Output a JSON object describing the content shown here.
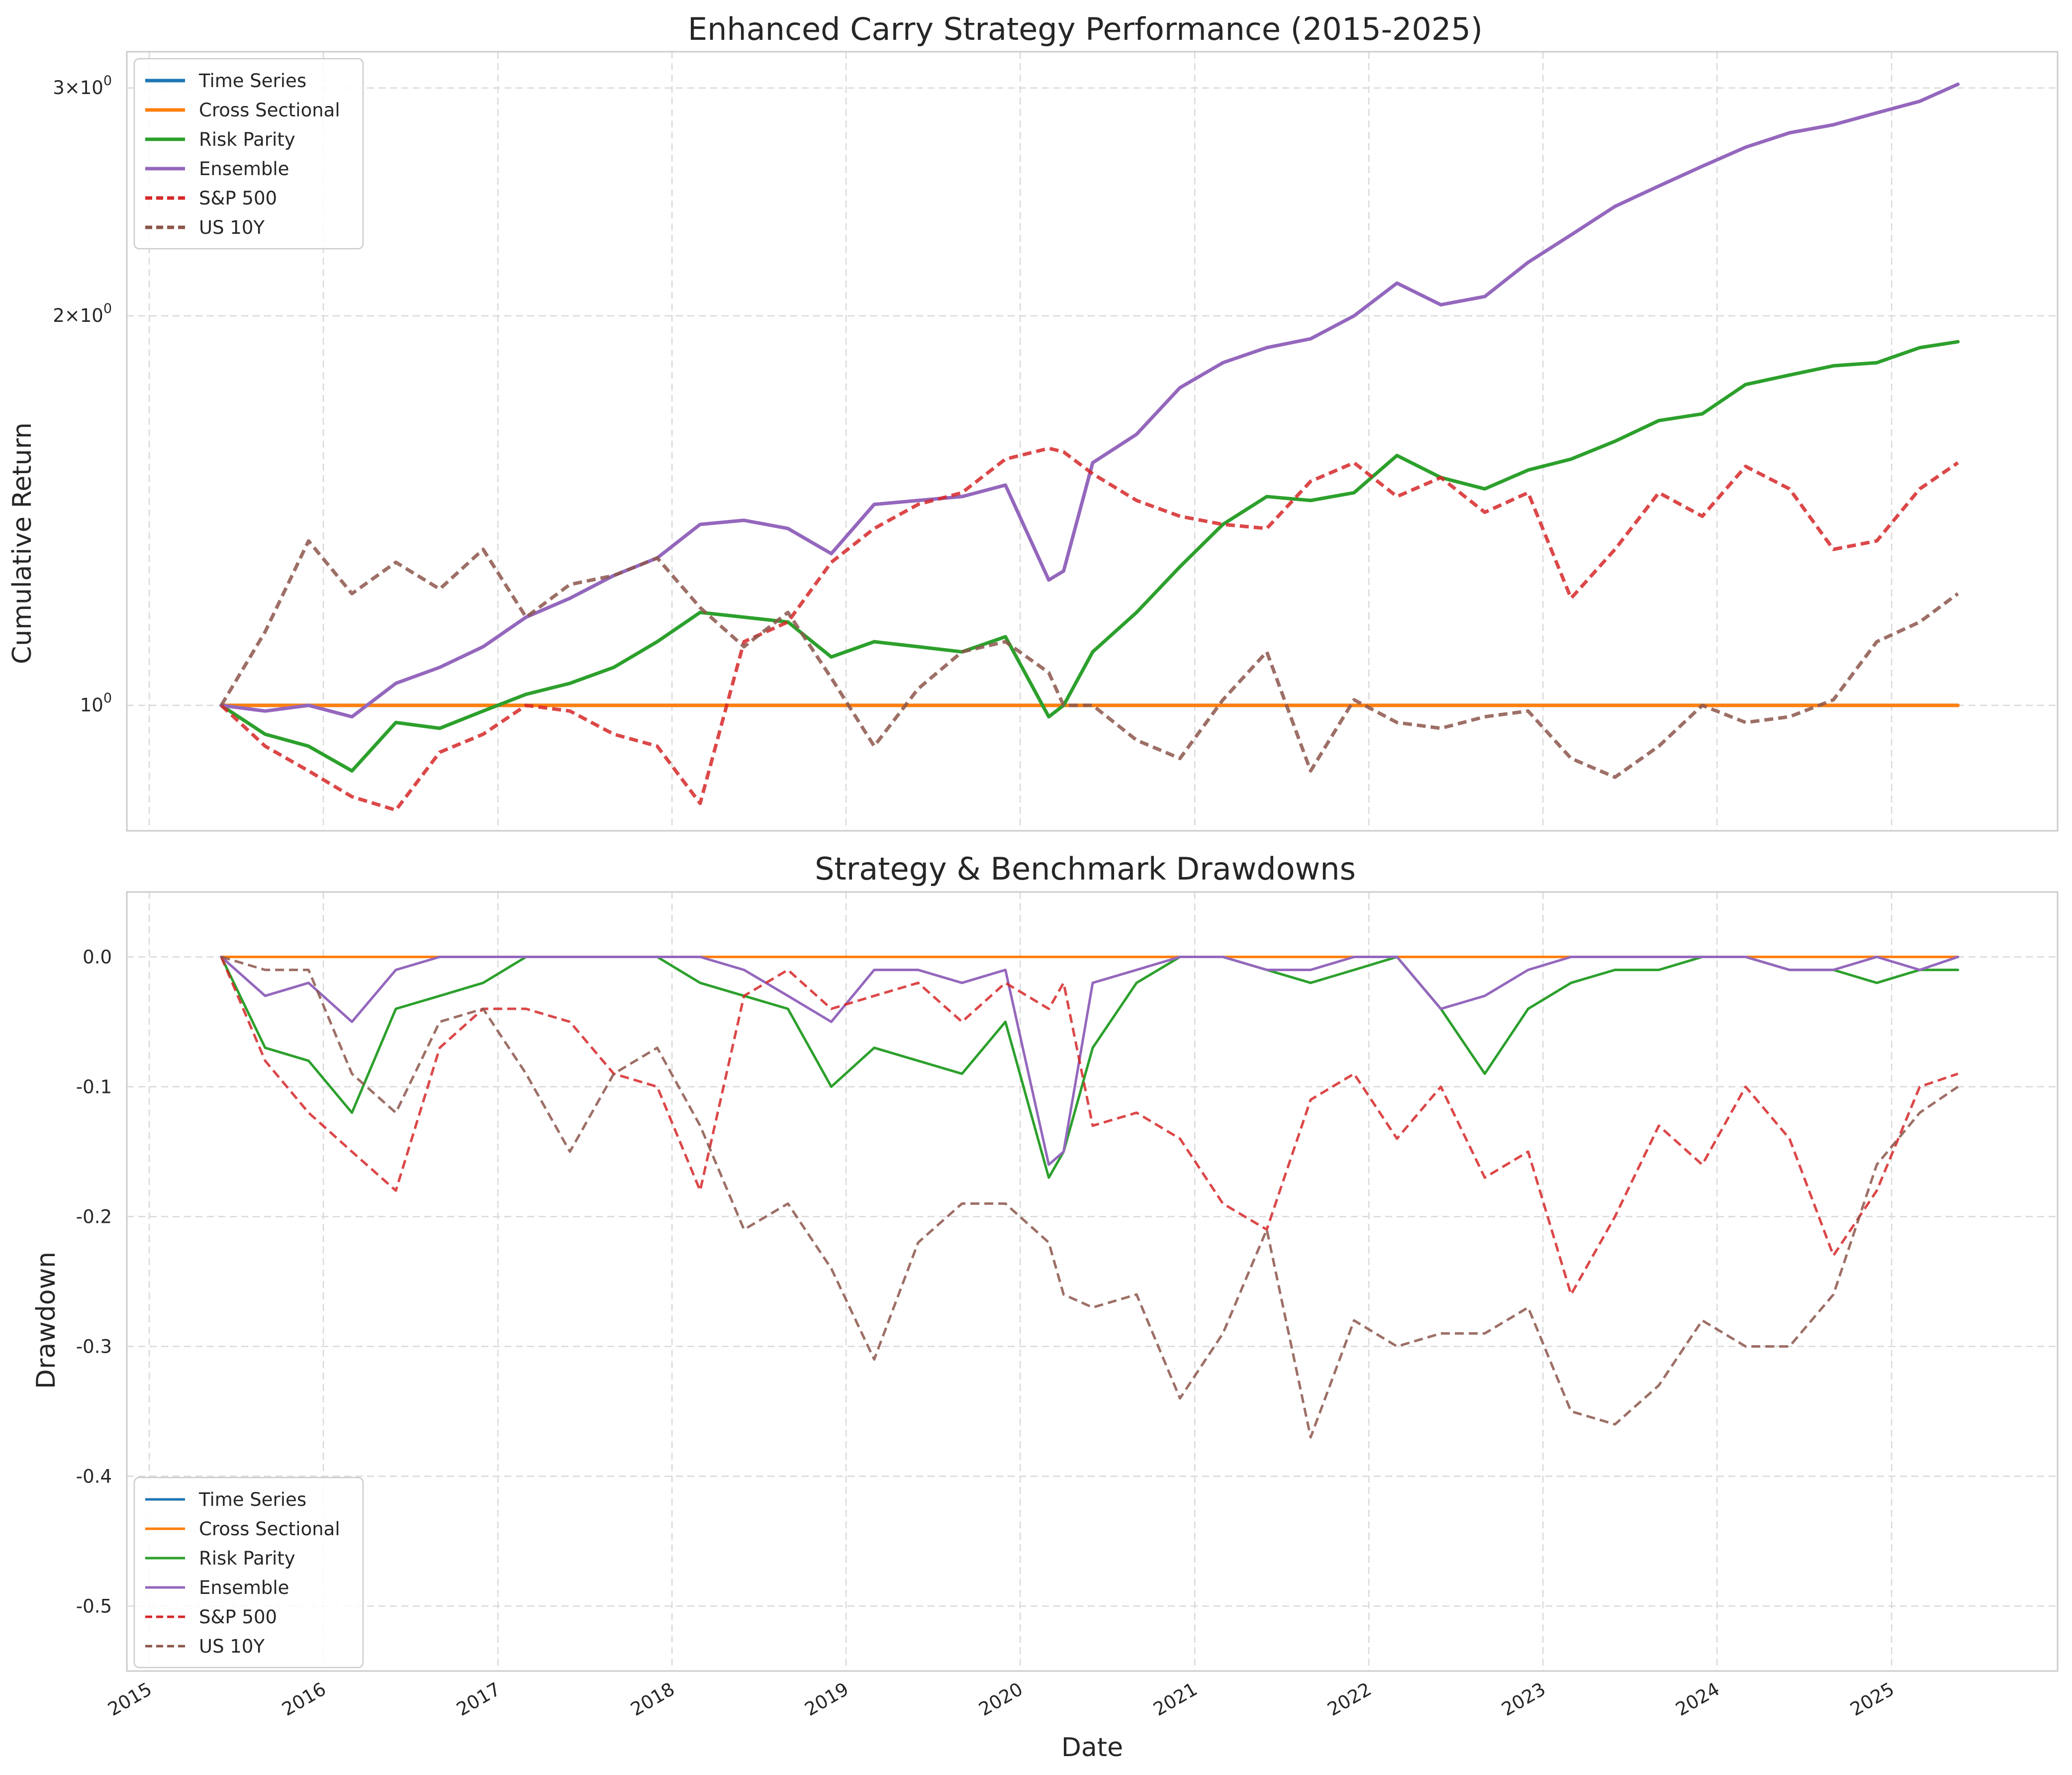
{
  "colors": {
    "time_series": "#1f77b4",
    "cross_sectional": "#ff7f0e",
    "risk_parity": "#2ca02c",
    "ensemble": "#9467bd",
    "sp500": "#d62728",
    "us10y": "#8c564b",
    "grid": "#d9d9d9",
    "spine": "#cccccc"
  },
  "top": {
    "title": "Enhanced Carry Strategy Performance (2015-2025)",
    "ylabel": "Cumulative Return",
    "ytick_labels": [
      {
        "value": 1,
        "base": "10",
        "exp": "0"
      },
      {
        "value": 2,
        "base": "2×10",
        "exp": "0"
      },
      {
        "value": 3,
        "base": "3×10",
        "exp": "0"
      }
    ]
  },
  "bottom": {
    "title": "Strategy & Benchmark Drawdowns",
    "ylabel": "Drawdown",
    "xlabel": "Date",
    "ytick_labels": [
      "0.0",
      "-0.1",
      "-0.2",
      "-0.3",
      "-0.4",
      "-0.5"
    ]
  },
  "x_tick_labels": [
    "2015",
    "2016",
    "2017",
    "2018",
    "2019",
    "2020",
    "2021",
    "2022",
    "2023",
    "2024",
    "2025"
  ],
  "legend": [
    {
      "label": "Time Series",
      "key": "time_series",
      "dash": false
    },
    {
      "label": "Cross Sectional",
      "key": "cross_sectional",
      "dash": false
    },
    {
      "label": "Risk Parity",
      "key": "risk_parity",
      "dash": false
    },
    {
      "label": "Ensemble",
      "key": "ensemble",
      "dash": false
    },
    {
      "label": "S&P 500",
      "key": "sp500",
      "dash": true
    },
    {
      "label": "US 10Y",
      "key": "us10y",
      "dash": true
    }
  ],
  "chart_data": [
    {
      "type": "line",
      "title": "Enhanced Carry Strategy Performance (2015-2025)",
      "xlabel": "",
      "ylabel": "Cumulative Return",
      "yscale": "log",
      "xlim": [
        "2014-11-15",
        "2025-12-15"
      ],
      "ylim": [
        0.8,
        3.2
      ],
      "grid": true,
      "legend_position": "upper left",
      "x": [
        "2015-06-01",
        "2015-09-01",
        "2015-12-01",
        "2016-03-01",
        "2016-06-01",
        "2016-09-01",
        "2016-12-01",
        "2017-03-01",
        "2017-06-01",
        "2017-09-01",
        "2017-12-01",
        "2018-03-01",
        "2018-06-01",
        "2018-09-01",
        "2018-12-01",
        "2019-03-01",
        "2019-06-01",
        "2019-09-01",
        "2019-12-01",
        "2020-03-01",
        "2020-04-01",
        "2020-06-01",
        "2020-09-01",
        "2020-12-01",
        "2021-03-01",
        "2021-06-01",
        "2021-09-01",
        "2021-12-01",
        "2022-03-01",
        "2022-06-01",
        "2022-09-01",
        "2022-12-01",
        "2023-03-01",
        "2023-06-01",
        "2023-09-01",
        "2023-12-01",
        "2024-03-01",
        "2024-06-01",
        "2024-09-01",
        "2024-12-01",
        "2025-03-01",
        "2025-05-20"
      ],
      "series": [
        {
          "name": "Time Series",
          "values": [
            1.0,
            1.0,
            1.0,
            1.0,
            1.0,
            1.0,
            1.0,
            1.0,
            1.0,
            1.0,
            1.0,
            1.0,
            1.0,
            1.0,
            1.0,
            1.0,
            1.0,
            1.0,
            1.0,
            1.0,
            1.0,
            1.0,
            1.0,
            1.0,
            1.0,
            1.0,
            1.0,
            1.0,
            1.0,
            1.0,
            1.0,
            1.0,
            1.0,
            1.0,
            1.0,
            1.0,
            1.0,
            1.0,
            1.0,
            1.0,
            1.0,
            1.0
          ]
        },
        {
          "name": "Cross Sectional",
          "values": [
            1.0,
            1.0,
            1.0,
            1.0,
            1.0,
            1.0,
            1.0,
            1.0,
            1.0,
            1.0,
            1.0,
            1.0,
            1.0,
            1.0,
            1.0,
            1.0,
            1.0,
            1.0,
            1.0,
            1.0,
            1.0,
            1.0,
            1.0,
            1.0,
            1.0,
            1.0,
            1.0,
            1.0,
            1.0,
            1.0,
            1.0,
            1.0,
            1.0,
            1.0,
            1.0,
            1.0,
            1.0,
            1.0,
            1.0,
            1.0,
            1.0,
            1.0
          ]
        },
        {
          "name": "Risk Parity",
          "values": [
            1.0,
            0.95,
            0.93,
            0.89,
            0.97,
            0.96,
            0.99,
            1.02,
            1.04,
            1.07,
            1.12,
            1.18,
            1.17,
            1.16,
            1.09,
            1.12,
            1.11,
            1.1,
            1.13,
            0.98,
            1.0,
            1.1,
            1.18,
            1.28,
            1.38,
            1.45,
            1.44,
            1.46,
            1.56,
            1.5,
            1.47,
            1.52,
            1.55,
            1.6,
            1.66,
            1.68,
            1.77,
            1.8,
            1.83,
            1.84,
            1.89,
            1.91
          ]
        },
        {
          "name": "Ensemble",
          "values": [
            1.0,
            0.99,
            1.0,
            0.98,
            1.04,
            1.07,
            1.11,
            1.17,
            1.21,
            1.26,
            1.3,
            1.38,
            1.39,
            1.37,
            1.31,
            1.43,
            1.44,
            1.45,
            1.48,
            1.25,
            1.27,
            1.54,
            1.62,
            1.76,
            1.84,
            1.89,
            1.92,
            2.0,
            2.12,
            2.04,
            2.07,
            2.2,
            2.31,
            2.43,
            2.52,
            2.61,
            2.7,
            2.77,
            2.81,
            2.87,
            2.93,
            3.02
          ]
        },
        {
          "name": "S&P 500",
          "values": [
            1.0,
            0.93,
            0.89,
            0.85,
            0.83,
            0.92,
            0.95,
            1.0,
            0.99,
            0.95,
            0.93,
            0.84,
            1.12,
            1.16,
            1.29,
            1.37,
            1.43,
            1.46,
            1.55,
            1.58,
            1.57,
            1.51,
            1.44,
            1.4,
            1.38,
            1.37,
            1.49,
            1.54,
            1.45,
            1.5,
            1.41,
            1.46,
            1.21,
            1.32,
            1.46,
            1.4,
            1.53,
            1.47,
            1.32,
            1.34,
            1.47,
            1.54
          ]
        },
        {
          "name": "US 10Y",
          "values": [
            1.0,
            1.14,
            1.34,
            1.22,
            1.29,
            1.23,
            1.32,
            1.17,
            1.24,
            1.26,
            1.3,
            1.19,
            1.11,
            1.18,
            1.05,
            0.93,
            1.03,
            1.1,
            1.12,
            1.06,
            1.0,
            1.0,
            0.94,
            0.91,
            1.01,
            1.1,
            0.89,
            1.01,
            0.97,
            0.96,
            0.98,
            0.99,
            0.91,
            0.88,
            0.93,
            1.0,
            0.97,
            0.98,
            1.01,
            1.12,
            1.16,
            1.22
          ]
        }
      ]
    },
    {
      "type": "line",
      "title": "Strategy & Benchmark Drawdowns",
      "xlabel": "Date",
      "ylabel": "Drawdown",
      "xlim": [
        "2014-11-15",
        "2025-12-15"
      ],
      "ylim": [
        -0.55,
        0.05
      ],
      "grid": true,
      "legend_position": "lower left",
      "x": [
        "2015-06-01",
        "2015-09-01",
        "2015-12-01",
        "2016-03-01",
        "2016-06-01",
        "2016-09-01",
        "2016-12-01",
        "2017-03-01",
        "2017-06-01",
        "2017-09-01",
        "2017-12-01",
        "2018-03-01",
        "2018-06-01",
        "2018-09-01",
        "2018-12-01",
        "2019-03-01",
        "2019-06-01",
        "2019-09-01",
        "2019-12-01",
        "2020-03-01",
        "2020-04-01",
        "2020-06-01",
        "2020-09-01",
        "2020-12-01",
        "2021-03-01",
        "2021-06-01",
        "2021-09-01",
        "2021-12-01",
        "2022-03-01",
        "2022-06-01",
        "2022-09-01",
        "2022-12-01",
        "2023-03-01",
        "2023-06-01",
        "2023-09-01",
        "2023-12-01",
        "2024-03-01",
        "2024-06-01",
        "2024-09-01",
        "2024-12-01",
        "2025-03-01",
        "2025-05-20"
      ],
      "series": [
        {
          "name": "Time Series",
          "values": [
            0,
            0,
            0,
            0,
            0,
            0,
            0,
            0,
            0,
            0,
            0,
            0,
            0,
            0,
            0,
            0,
            0,
            0,
            0,
            0,
            0,
            0,
            0,
            0,
            0,
            0,
            0,
            0,
            0,
            0,
            0,
            0,
            0,
            0,
            0,
            0,
            0,
            0,
            0,
            0,
            0,
            0
          ]
        },
        {
          "name": "Cross Sectional",
          "values": [
            0,
            0,
            0,
            0,
            0,
            0,
            0,
            0,
            0,
            0,
            0,
            0,
            0,
            0,
            0,
            0,
            0,
            0,
            0,
            0,
            0,
            0,
            0,
            0,
            0,
            0,
            0,
            0,
            0,
            0,
            0,
            0,
            0,
            0,
            0,
            0,
            0,
            0,
            0,
            0,
            0,
            0
          ]
        },
        {
          "name": "Risk Parity",
          "values": [
            0,
            -0.07,
            -0.08,
            -0.12,
            -0.04,
            -0.03,
            -0.02,
            0,
            0,
            0,
            0,
            -0.02,
            -0.03,
            -0.04,
            -0.1,
            -0.07,
            -0.08,
            -0.09,
            -0.05,
            -0.17,
            -0.15,
            -0.07,
            -0.02,
            0,
            0,
            -0.01,
            -0.02,
            -0.01,
            0,
            -0.04,
            -0.09,
            -0.04,
            -0.02,
            -0.01,
            -0.01,
            0,
            0,
            -0.01,
            -0.01,
            -0.02,
            -0.01,
            -0.01
          ]
        },
        {
          "name": "Ensemble",
          "values": [
            0,
            -0.03,
            -0.02,
            -0.05,
            -0.01,
            0,
            0,
            0,
            0,
            0,
            0,
            0,
            -0.01,
            -0.03,
            -0.05,
            -0.01,
            -0.01,
            -0.02,
            -0.01,
            -0.16,
            -0.15,
            -0.02,
            -0.01,
            0,
            0,
            -0.01,
            -0.01,
            0,
            0,
            -0.04,
            -0.03,
            -0.01,
            0,
            0,
            0,
            0,
            0,
            -0.01,
            -0.01,
            0,
            -0.01,
            0
          ]
        },
        {
          "name": "S&P 500",
          "values": [
            0,
            -0.08,
            -0.12,
            -0.15,
            -0.18,
            -0.07,
            -0.04,
            -0.04,
            -0.05,
            -0.09,
            -0.1,
            -0.18,
            -0.03,
            -0.01,
            -0.04,
            -0.03,
            -0.02,
            -0.05,
            -0.02,
            -0.04,
            -0.02,
            -0.13,
            -0.12,
            -0.14,
            -0.19,
            -0.21,
            -0.11,
            -0.09,
            -0.14,
            -0.1,
            -0.17,
            -0.15,
            -0.26,
            -0.2,
            -0.13,
            -0.16,
            -0.1,
            -0.14,
            -0.23,
            -0.18,
            -0.1,
            -0.09
          ]
        },
        {
          "name": "US 10Y",
          "values": [
            0,
            -0.01,
            -0.01,
            -0.09,
            -0.12,
            -0.05,
            -0.04,
            -0.09,
            -0.15,
            -0.09,
            -0.07,
            -0.13,
            -0.21,
            -0.19,
            -0.24,
            -0.31,
            -0.22,
            -0.19,
            -0.19,
            -0.22,
            -0.26,
            -0.27,
            -0.26,
            -0.34,
            -0.29,
            -0.21,
            -0.37,
            -0.28,
            -0.3,
            -0.29,
            -0.29,
            -0.27,
            -0.35,
            -0.36,
            -0.33,
            -0.28,
            -0.3,
            -0.3,
            -0.26,
            -0.16,
            -0.12,
            -0.1
          ]
        }
      ]
    }
  ]
}
